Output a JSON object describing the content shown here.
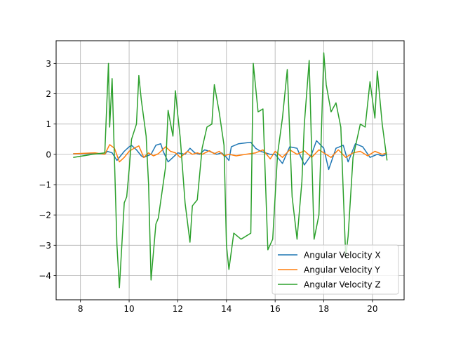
{
  "chart_data": {
    "type": "line",
    "title": "",
    "xlabel": "",
    "ylabel": "",
    "xlim": [
      7.0,
      21.3
    ],
    "ylim": [
      -4.8,
      3.75
    ],
    "x_ticks": [
      8,
      10,
      12,
      14,
      16,
      18,
      20
    ],
    "y_ticks": [
      -4,
      -3,
      -2,
      -1,
      0,
      1,
      2,
      3
    ],
    "grid": true,
    "legend_position": "lower right",
    "series": [
      {
        "name": "Angular Velocity X",
        "color": "#1f77b4",
        "x": [
          7.7,
          8.6,
          9.0,
          9.1,
          9.3,
          9.5,
          9.8,
          10.0,
          10.1,
          10.3,
          10.5,
          10.6,
          10.9,
          11.1,
          11.3,
          11.4,
          11.6,
          11.8,
          12.0,
          12.3,
          12.5,
          12.7,
          12.9,
          13.1,
          13.3,
          13.6,
          13.8,
          14.0,
          14.1,
          14.2,
          14.5,
          15.0,
          15.2,
          15.4,
          15.6,
          15.8,
          16.0,
          16.3,
          16.6,
          16.9,
          17.2,
          17.5,
          17.7,
          18.0,
          18.2,
          18.5,
          18.8,
          19.0,
          19.3,
          19.6,
          19.9,
          20.2,
          20.4,
          20.6
        ],
        "y": [
          0.02,
          0.03,
          0.0,
          0.1,
          0.05,
          -0.2,
          0.1,
          0.25,
          0.3,
          0.15,
          -0.05,
          -0.1,
          0.0,
          0.3,
          0.35,
          0.1,
          -0.25,
          -0.1,
          0.05,
          0.0,
          0.2,
          0.05,
          0.0,
          0.15,
          0.1,
          0.0,
          0.05,
          -0.1,
          -0.2,
          0.25,
          0.35,
          0.4,
          0.2,
          0.1,
          0.05,
          0.0,
          0.0,
          -0.3,
          0.25,
          0.2,
          -0.35,
          0.0,
          0.45,
          0.2,
          -0.5,
          0.2,
          0.3,
          -0.25,
          0.35,
          0.25,
          -0.1,
          0.0,
          -0.05,
          0.0
        ]
      },
      {
        "name": "Angular Velocity Y",
        "color": "#ff7f0e",
        "x": [
          7.7,
          8.6,
          9.0,
          9.2,
          9.4,
          9.6,
          9.8,
          10.0,
          10.2,
          10.4,
          10.6,
          10.8,
          11.0,
          11.2,
          11.5,
          11.7,
          11.9,
          12.1,
          12.4,
          12.6,
          12.8,
          13.0,
          13.3,
          13.5,
          13.7,
          13.9,
          14.1,
          14.4,
          14.8,
          15.2,
          15.5,
          15.8,
          16.0,
          16.3,
          16.6,
          16.9,
          17.2,
          17.5,
          17.8,
          18.0,
          18.3,
          18.6,
          18.9,
          19.2,
          19.5,
          19.8,
          20.1,
          20.4,
          20.6
        ],
        "y": [
          0.02,
          0.05,
          0.0,
          0.32,
          0.2,
          -0.25,
          -0.1,
          0.1,
          0.2,
          0.28,
          -0.1,
          0.05,
          -0.05,
          0.02,
          0.25,
          0.1,
          0.05,
          -0.1,
          0.1,
          0.0,
          0.05,
          0.0,
          0.12,
          0.02,
          0.1,
          -0.05,
          0.0,
          -0.05,
          0.0,
          0.05,
          0.15,
          -0.15,
          0.1,
          -0.1,
          0.15,
          0.0,
          0.12,
          -0.1,
          0.15,
          0.05,
          -0.1,
          0.15,
          -0.1,
          0.05,
          0.1,
          -0.05,
          0.1,
          0.0,
          0.05
        ]
      },
      {
        "name": "Angular Velocity Z",
        "color": "#2ca02c",
        "x": [
          7.7,
          8.5,
          9.0,
          9.15,
          9.2,
          9.3,
          9.5,
          9.6,
          9.8,
          9.9,
          10.0,
          10.1,
          10.3,
          10.4,
          10.5,
          10.7,
          10.8,
          10.9,
          11.1,
          11.2,
          11.5,
          11.6,
          11.8,
          11.9,
          12.0,
          12.1,
          12.3,
          12.5,
          12.6,
          12.8,
          13.0,
          13.2,
          13.4,
          13.5,
          13.7,
          13.9,
          14.0,
          14.1,
          14.3,
          14.6,
          15.0,
          15.1,
          15.3,
          15.5,
          15.7,
          15.9,
          16.1,
          16.3,
          16.5,
          16.7,
          16.9,
          17.1,
          17.2,
          17.4,
          17.6,
          17.8,
          18.0,
          18.1,
          18.3,
          18.5,
          18.7,
          18.9,
          19.0,
          19.2,
          19.5,
          19.7,
          19.9,
          20.1,
          20.2,
          20.4,
          20.6
        ],
        "y": [
          -0.1,
          0.0,
          0.05,
          3.0,
          0.9,
          2.5,
          -3.0,
          -4.4,
          -1.6,
          -1.4,
          -0.5,
          0.5,
          1.0,
          2.6,
          1.8,
          0.6,
          -1.0,
          -4.15,
          -2.3,
          -2.1,
          -0.4,
          1.45,
          0.6,
          2.1,
          1.3,
          0.55,
          -1.6,
          -2.9,
          -1.7,
          -1.5,
          0.2,
          0.9,
          1.0,
          2.3,
          1.4,
          0.3,
          -3.0,
          -3.8,
          -2.6,
          -2.8,
          -2.6,
          3.0,
          1.4,
          1.5,
          -3.15,
          -2.8,
          0.0,
          1.2,
          2.8,
          -1.4,
          -2.8,
          -0.9,
          1.0,
          3.1,
          -2.8,
          -2.0,
          3.35,
          2.3,
          1.4,
          1.7,
          0.9,
          -3.4,
          -2.7,
          -0.1,
          1.0,
          0.9,
          2.4,
          1.2,
          2.75,
          1.0,
          -0.2
        ]
      }
    ]
  }
}
